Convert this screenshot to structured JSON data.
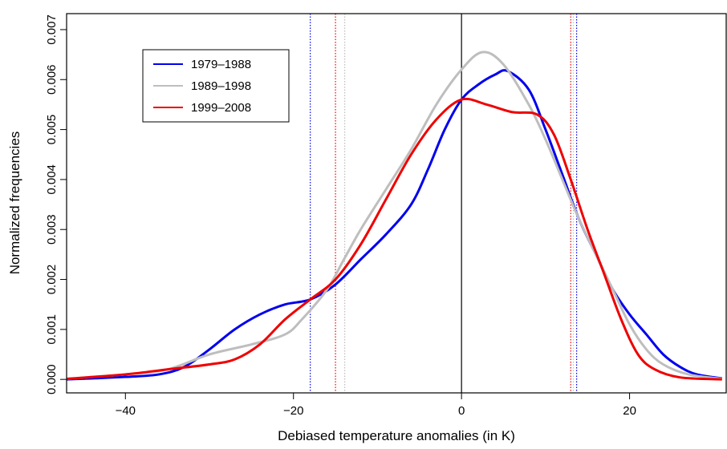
{
  "chart_data": {
    "type": "line",
    "xlabel": "Debiased temperature anomalies (in K)",
    "ylabel": "Normalized frequencies",
    "xlim": [
      -47,
      31.5
    ],
    "ylim": [
      -0.00027,
      0.00732
    ],
    "xticks": [
      {
        "value": -40,
        "label": "−40"
      },
      {
        "value": -20,
        "label": "−20"
      },
      0,
      20
    ],
    "yticks": [
      {
        "value": 0,
        "label": "0.000"
      },
      {
        "value": 0.001,
        "label": "0.001"
      },
      {
        "value": 0.002,
        "label": "0.002"
      },
      {
        "value": 0.003,
        "label": "0.003"
      },
      {
        "value": 0.004,
        "label": "0.004"
      },
      {
        "value": 0.005,
        "label": "0.005"
      },
      {
        "value": 0.006,
        "label": "0.006"
      },
      {
        "value": 0.007,
        "label": "0.007"
      }
    ],
    "reference_line": 0,
    "legend": "upper left",
    "series": [
      {
        "name": "1979–1988",
        "color": "#0000ee",
        "quantiles": [
          -18.0,
          13.7
        ],
        "x": [
          -47,
          -40,
          -36,
          -33,
          -30,
          -27,
          -24,
          -21,
          -18,
          -15,
          -12,
          -9,
          -6,
          -4,
          -2,
          0,
          2,
          4,
          5.5,
          8,
          10,
          12,
          14,
          16,
          18,
          20,
          22,
          24,
          26,
          28,
          31
        ],
        "values": [
          0.0,
          5e-05,
          0.0001,
          0.00025,
          0.0006,
          0.001,
          0.0013,
          0.0015,
          0.0016,
          0.0019,
          0.0024,
          0.0029,
          0.0035,
          0.0042,
          0.005,
          0.0056,
          0.0059,
          0.0061,
          0.00617,
          0.0058,
          0.005,
          0.0041,
          0.0032,
          0.0025,
          0.0018,
          0.0013,
          0.0009,
          0.0005,
          0.00025,
          0.0001,
          2e-05
        ]
      },
      {
        "name": "1989–1998",
        "color": "#bebebe",
        "quantiles": [
          -13.9,
          13.3
        ],
        "x": [
          -47,
          -40,
          -35,
          -30,
          -25,
          -21,
          -19,
          -16,
          -14,
          -12,
          -9,
          -6,
          -3,
          0,
          2.5,
          5,
          8,
          10,
          12,
          14,
          16,
          18,
          20,
          22,
          24,
          27,
          31
        ],
        "values": [
          1e-05,
          0.0001,
          0.0002,
          0.0005,
          0.0007,
          0.0009,
          0.0012,
          0.0018,
          0.0024,
          0.003,
          0.0038,
          0.0046,
          0.0055,
          0.0062,
          0.00655,
          0.0063,
          0.0055,
          0.0048,
          0.004,
          0.0032,
          0.0025,
          0.0018,
          0.0011,
          0.0006,
          0.0003,
          0.0001,
          1e-05
        ]
      },
      {
        "name": "1999–2008",
        "color": "#ee0000",
        "quantiles": [
          -15.0,
          13.0
        ],
        "x": [
          -47,
          -40,
          -35,
          -30,
          -27,
          -24,
          -21,
          -18,
          -15,
          -12,
          -9,
          -6,
          -3,
          0,
          3,
          6,
          9,
          11,
          13,
          15,
          17,
          19,
          21,
          23,
          26,
          31
        ],
        "values": [
          1e-05,
          0.0001,
          0.0002,
          0.0003,
          0.0004,
          0.0007,
          0.0012,
          0.0016,
          0.002,
          0.0027,
          0.0036,
          0.0045,
          0.0052,
          0.0056,
          0.0055,
          0.00535,
          0.0053,
          0.0049,
          0.004,
          0.003,
          0.0021,
          0.0012,
          0.0005,
          0.0002,
          4e-05,
          0.0
        ]
      }
    ]
  }
}
